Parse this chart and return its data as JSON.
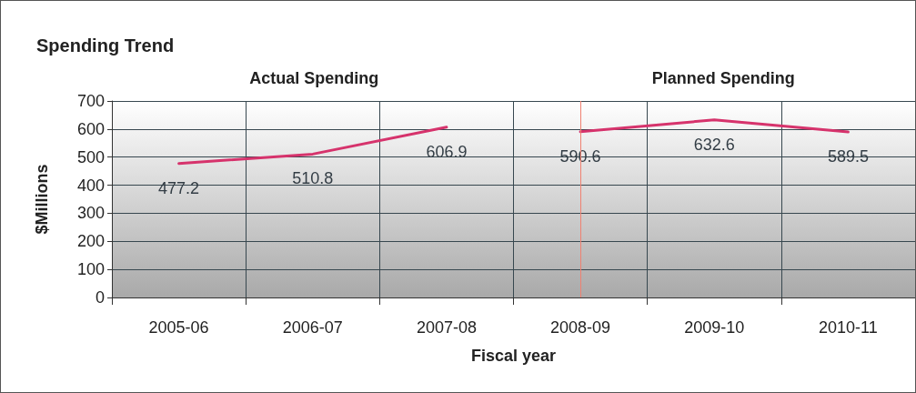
{
  "chart_data": {
    "type": "line",
    "title": "Spending Trend",
    "xlabel": "Fiscal year",
    "ylabel": "$Millions",
    "categories": [
      "2005-06",
      "2006-07",
      "2007-08",
      "2008-09",
      "2009-10",
      "2010-11"
    ],
    "series": [
      {
        "color": "#d6336c",
        "values": [
          477.2,
          510.8,
          606.9,
          null,
          null,
          null
        ]
      },
      {
        "color": "#d6336c",
        "values": [
          null,
          null,
          null,
          590.6,
          632.6,
          589.5
        ]
      }
    ],
    "ylim": [
      0,
      700
    ],
    "yticks": [
      0,
      100,
      200,
      300,
      400,
      500,
      600,
      700
    ],
    "grid": true,
    "data_labels": true,
    "marker": "none",
    "line_style": "solid",
    "annotations": [
      "Actual Spending",
      "Planned Spending"
    ],
    "ref_lines": [
      {
        "axis": "x",
        "value": "2008-09",
        "color": "#f08070"
      }
    ]
  }
}
